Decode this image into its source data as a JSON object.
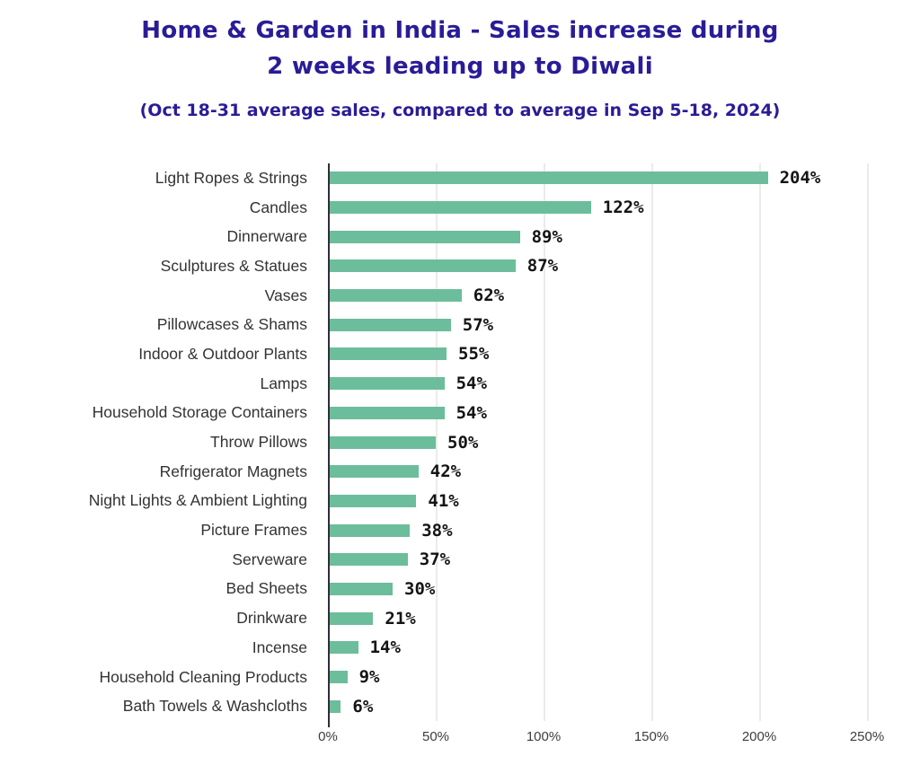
{
  "header": {
    "title_line1": "Home & Garden in India - Sales increase during",
    "title_line2": "2 weeks leading up to Diwali",
    "subtitle": "(Oct 18-31 average sales, compared to average in Sep 5-18, 2024)"
  },
  "colors": {
    "title": "#2A1C96",
    "bar": "#6CBD9B",
    "category_label": "#333333",
    "value_label": "#141414",
    "gridline": "#EBEBEB",
    "axis": "#2E2E35",
    "background": "#FFFFFF"
  },
  "chart_data": {
    "type": "bar",
    "orientation": "horizontal",
    "title": "Home & Garden in India - Sales increase during 2 weeks leading up to Diwali",
    "subtitle": "(Oct 18-31 average sales, compared to average in Sep 5-18, 2024)",
    "categories": [
      "Light Ropes & Strings",
      "Candles",
      "Dinnerware",
      "Sculptures & Statues",
      "Vases",
      "Pillowcases & Shams",
      "Indoor & Outdoor Plants",
      "Lamps",
      "Household Storage Containers",
      "Throw Pillows",
      "Refrigerator Magnets",
      "Night Lights & Ambient Lighting",
      "Picture Frames",
      "Serveware",
      "Bed Sheets",
      "Drinkware",
      "Incense",
      "Household Cleaning Products",
      "Bath Towels & Washcloths"
    ],
    "values": [
      204,
      122,
      89,
      87,
      62,
      57,
      55,
      54,
      54,
      50,
      42,
      41,
      38,
      37,
      30,
      21,
      14,
      9,
      6
    ],
    "value_labels": [
      "204%",
      "122%",
      "89%",
      "87%",
      "62%",
      "57%",
      "55%",
      "54%",
      "54%",
      "50%",
      "42%",
      "41%",
      "38%",
      "37%",
      "30%",
      "21%",
      "14%",
      "9%",
      "6%"
    ],
    "xlabel": "",
    "ylabel": "",
    "xlim": [
      0,
      260
    ],
    "x_tick_values": [
      0,
      50,
      100,
      150,
      200,
      250
    ],
    "x_tick_labels": [
      "0%",
      "50%",
      "100%",
      "150%",
      "200%",
      "250%"
    ],
    "grid": "vertical-gridlines-on",
    "legend": "none"
  }
}
